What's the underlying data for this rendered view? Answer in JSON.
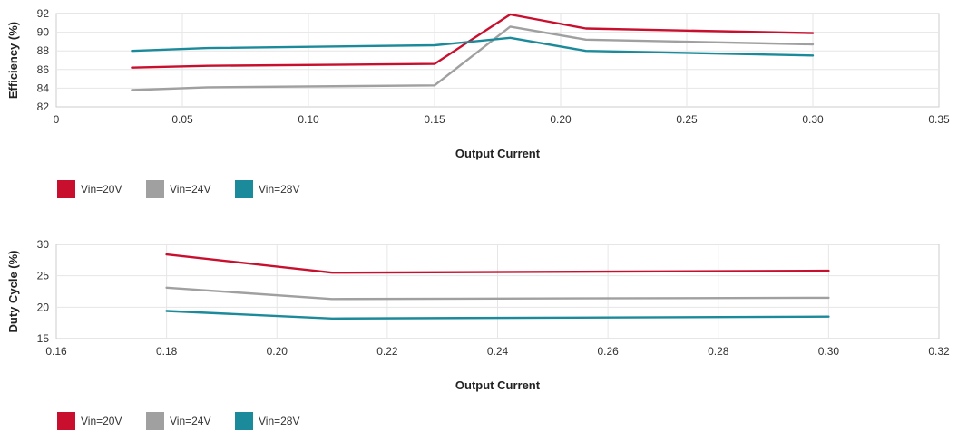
{
  "colors": {
    "vin20": "#c8102e",
    "vin24": "#a0a0a0",
    "vin28": "#1b8a9a",
    "grid": "#e6e6e6",
    "axis": "#cccccc"
  },
  "chart_data": [
    {
      "type": "line",
      "xlabel": "Output Current",
      "ylabel": "Efficiency (%)",
      "xlim": [
        0,
        0.35
      ],
      "ylim": [
        82,
        92
      ],
      "x_ticks": [
        "0",
        "0.05",
        "0.10",
        "0.15",
        "0.20",
        "0.25",
        "0.30",
        "0.35"
      ],
      "y_ticks": [
        "82",
        "84",
        "86",
        "88",
        "90",
        "92"
      ],
      "grid": true,
      "legend_position": "bottom-left",
      "series": [
        {
          "name": "Vin=20V",
          "color": "#c8102e",
          "x": [
            0.03,
            0.06,
            0.15,
            0.18,
            0.21,
            0.3
          ],
          "y": [
            86.2,
            86.4,
            86.6,
            91.9,
            90.4,
            89.9
          ]
        },
        {
          "name": "Vin=24V",
          "color": "#a0a0a0",
          "x": [
            0.03,
            0.06,
            0.15,
            0.18,
            0.21,
            0.3
          ],
          "y": [
            83.8,
            84.1,
            84.3,
            90.6,
            89.2,
            88.7
          ]
        },
        {
          "name": "Vin=28V",
          "color": "#1b8a9a",
          "x": [
            0.03,
            0.06,
            0.15,
            0.18,
            0.21,
            0.3
          ],
          "y": [
            88.0,
            88.3,
            88.6,
            89.4,
            88.0,
            87.5
          ]
        }
      ]
    },
    {
      "type": "line",
      "xlabel": "Output Current",
      "ylabel": "Duty Cycle (%)",
      "xlim": [
        0.16,
        0.32
      ],
      "ylim": [
        15,
        30
      ],
      "x_ticks": [
        "0.16",
        "0.18",
        "0.20",
        "0.22",
        "0.24",
        "0.26",
        "0.28",
        "0.30",
        "0.32"
      ],
      "y_ticks": [
        "15",
        "20",
        "25",
        "30"
      ],
      "grid": true,
      "legend_position": "bottom-left",
      "series": [
        {
          "name": "Vin=20V",
          "color": "#c8102e",
          "x": [
            0.18,
            0.21,
            0.3
          ],
          "y": [
            28.4,
            25.5,
            25.8
          ]
        },
        {
          "name": "Vin=24V",
          "color": "#a0a0a0",
          "x": [
            0.18,
            0.21,
            0.3
          ],
          "y": [
            23.1,
            21.3,
            21.5
          ]
        },
        {
          "name": "Vin=28V",
          "color": "#1b8a9a",
          "x": [
            0.18,
            0.21,
            0.3
          ],
          "y": [
            19.4,
            18.2,
            18.5
          ]
        }
      ]
    }
  ]
}
